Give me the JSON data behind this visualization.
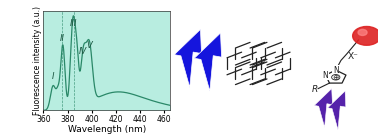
{
  "bg_color": "#b8ede0",
  "plot_bg_color": "#b8ede0",
  "fig_bg_color": "#ffffff",
  "xlim": [
    360,
    465
  ],
  "ylim": [
    0,
    1.05
  ],
  "xlabel": "Wavelength (nm)",
  "ylabel": "Fluorescence intensity (a.u.)",
  "xlabel_fontsize": 6.5,
  "ylabel_fontsize": 5.5,
  "tick_fontsize": 5.5,
  "xticks": [
    360,
    380,
    400,
    420,
    440,
    460
  ],
  "dashed_lines": [
    375,
    385
  ],
  "line_color": "#2a8868",
  "line_width": 0.9,
  "annotation_fontsize": 6.0,
  "blue_lightning_color": "#1515dd",
  "purple_lightning_color": "#5522aa",
  "mol_color": "#222222",
  "bead_color": "#dd2222",
  "bead_highlight": "#ff8888"
}
